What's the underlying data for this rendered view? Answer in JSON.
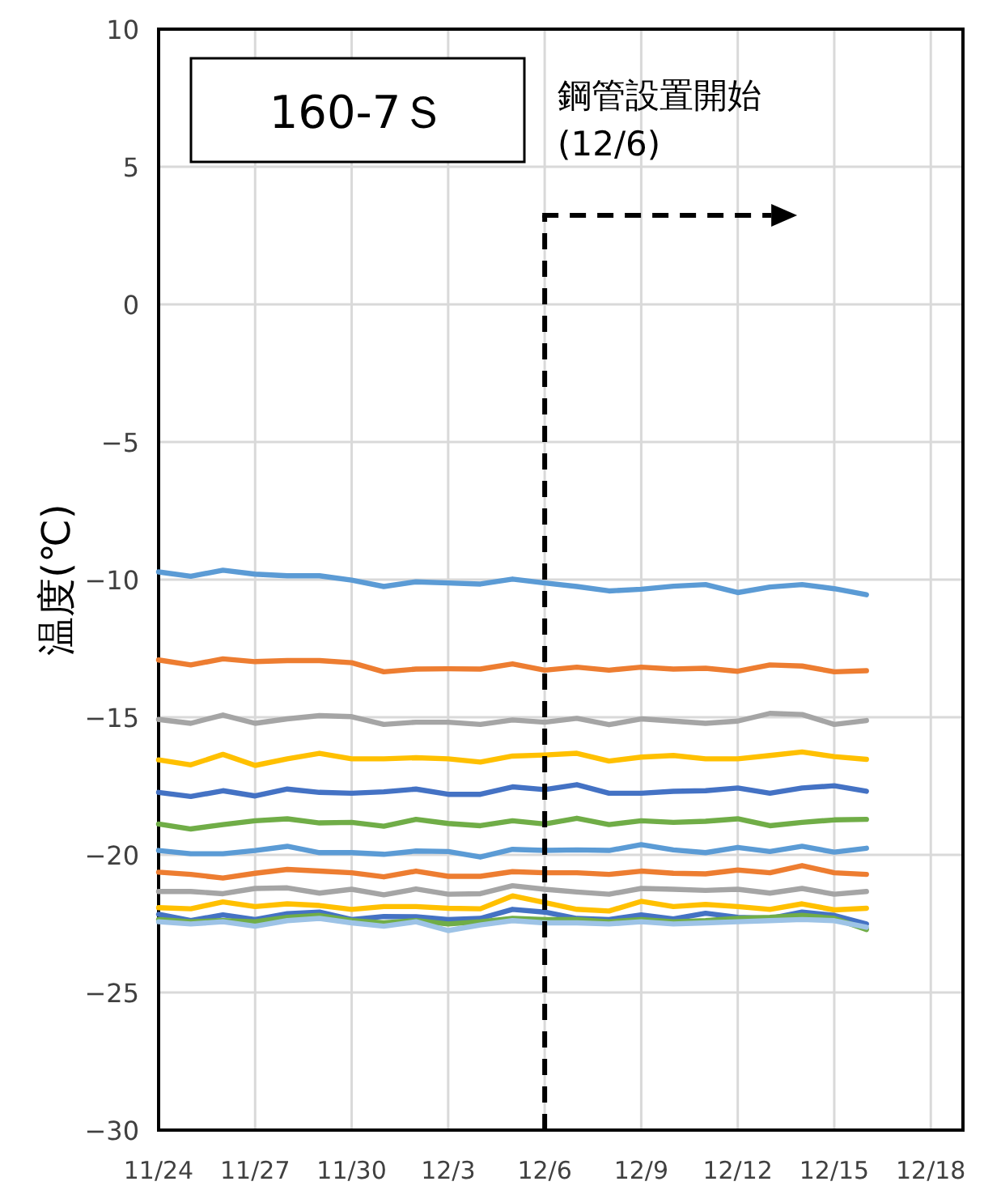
{
  "chart_data": {
    "type": "line",
    "ylabel": "温度(℃)",
    "annotations": [
      "160-7Ｓ"
    ],
    "x": [
      "--11-24",
      "--11-25",
      "--11-26",
      "--11-27",
      "--11-28",
      "--11-29",
      "--11-30",
      "--12-01",
      "--12-02",
      "--12-03",
      "--12-04",
      "--12-05",
      "--12-06",
      "--12-07",
      "--12-08",
      "--12-09",
      "--12-10",
      "--12-11",
      "--12-12",
      "--12-13",
      "--12-14",
      "--12-15",
      "--12-16"
    ],
    "xlim": [
      "--11-24",
      "--12-19"
    ],
    "xticks": [
      {
        "value": "--11-24",
        "label": "11/24"
      },
      {
        "value": "--11-27",
        "label": "11/27"
      },
      {
        "value": "--11-30",
        "label": "11/30"
      },
      {
        "value": "--12-03",
        "label": "12/3"
      },
      {
        "value": "--12-06",
        "label": "12/6"
      },
      {
        "value": "--12-09",
        "label": "12/9"
      },
      {
        "value": "--12-12",
        "label": "12/12"
      },
      {
        "value": "--12-15",
        "label": "12/15"
      },
      {
        "value": "--12-18",
        "label": "12/18"
      }
    ],
    "ylim": [
      -30,
      10
    ],
    "yticks": [
      -30,
      -25,
      -20,
      -15,
      -10,
      -5,
      0,
      5,
      10
    ],
    "grid": true,
    "marker": "none",
    "line_style": "solid",
    "ref_lines": [
      {
        "axis": "x",
        "value": "--12-06",
        "label": "鋼管設置開始\n(12/6)",
        "line_style": "dashed",
        "color": "#000000"
      }
    ],
    "series": [
      {
        "color": "#5b9bd5",
        "values": [
          -9.72,
          -9.88,
          -9.66,
          -9.8,
          -9.86,
          -9.86,
          -10.02,
          -10.25,
          -10.08,
          -10.12,
          -10.16,
          -9.98,
          -10.12,
          -10.25,
          -10.41,
          -10.35,
          -10.24,
          -10.18,
          -10.47,
          -10.27,
          -10.18,
          -10.33,
          -10.55
        ]
      },
      {
        "color": "#ed7d31",
        "values": [
          -12.92,
          -13.1,
          -12.88,
          -12.98,
          -12.94,
          -12.94,
          -13.02,
          -13.35,
          -13.25,
          -13.24,
          -13.25,
          -13.06,
          -13.29,
          -13.18,
          -13.29,
          -13.18,
          -13.25,
          -13.22,
          -13.33,
          -13.1,
          -13.14,
          -13.35,
          -13.31
        ]
      },
      {
        "color": "#a5a5a5",
        "values": [
          -15.08,
          -15.22,
          -14.92,
          -15.22,
          -15.06,
          -14.94,
          -14.98,
          -15.26,
          -15.18,
          -15.18,
          -15.26,
          -15.1,
          -15.18,
          -15.04,
          -15.27,
          -15.06,
          -15.14,
          -15.22,
          -15.14,
          -14.86,
          -14.9,
          -15.26,
          -15.12
        ]
      },
      {
        "color": "#ffc000",
        "values": [
          -16.55,
          -16.73,
          -16.35,
          -16.75,
          -16.51,
          -16.31,
          -16.51,
          -16.51,
          -16.47,
          -16.51,
          -16.63,
          -16.41,
          -16.37,
          -16.31,
          -16.59,
          -16.45,
          -16.39,
          -16.51,
          -16.51,
          -16.39,
          -16.26,
          -16.43,
          -16.53
        ]
      },
      {
        "color": "#4472c4",
        "values": [
          -17.73,
          -17.88,
          -17.67,
          -17.86,
          -17.61,
          -17.73,
          -17.76,
          -17.71,
          -17.61,
          -17.8,
          -17.8,
          -17.53,
          -17.63,
          -17.45,
          -17.76,
          -17.76,
          -17.69,
          -17.67,
          -17.57,
          -17.76,
          -17.57,
          -17.49,
          -17.69
        ]
      },
      {
        "color": "#70ad47",
        "values": [
          -18.88,
          -19.06,
          -18.9,
          -18.76,
          -18.69,
          -18.84,
          -18.82,
          -18.96,
          -18.71,
          -18.86,
          -18.94,
          -18.76,
          -18.88,
          -18.67,
          -18.9,
          -18.76,
          -18.82,
          -18.78,
          -18.69,
          -18.94,
          -18.82,
          -18.73,
          -18.71
        ]
      },
      {
        "color": "#5b9bd5",
        "values": [
          -19.84,
          -19.96,
          -19.96,
          -19.84,
          -19.69,
          -19.92,
          -19.92,
          -19.98,
          -19.86,
          -19.88,
          -20.08,
          -19.8,
          -19.84,
          -19.82,
          -19.84,
          -19.63,
          -19.82,
          -19.92,
          -19.73,
          -19.88,
          -19.69,
          -19.9,
          -19.76
        ]
      },
      {
        "color": "#ed7d31",
        "values": [
          -20.63,
          -20.71,
          -20.84,
          -20.67,
          -20.53,
          -20.59,
          -20.65,
          -20.8,
          -20.59,
          -20.78,
          -20.78,
          -20.61,
          -20.65,
          -20.65,
          -20.71,
          -20.59,
          -20.67,
          -20.69,
          -20.55,
          -20.65,
          -20.39,
          -20.65,
          -20.71
        ]
      },
      {
        "color": "#a5a5a5",
        "values": [
          -21.33,
          -21.33,
          -21.41,
          -21.22,
          -21.2,
          -21.39,
          -21.25,
          -21.45,
          -21.24,
          -21.43,
          -21.41,
          -21.12,
          -21.25,
          -21.35,
          -21.43,
          -21.22,
          -21.25,
          -21.29,
          -21.25,
          -21.39,
          -21.22,
          -21.43,
          -21.33
        ]
      },
      {
        "color": "#ffc000",
        "values": [
          -21.92,
          -21.96,
          -21.71,
          -21.88,
          -21.78,
          -21.84,
          -21.98,
          -21.88,
          -21.88,
          -21.94,
          -21.96,
          -21.49,
          -21.73,
          -21.98,
          -22.04,
          -21.69,
          -21.88,
          -21.8,
          -21.88,
          -21.98,
          -21.78,
          -22.0,
          -21.94
        ]
      },
      {
        "color": "#4472c4",
        "values": [
          -22.16,
          -22.39,
          -22.18,
          -22.35,
          -22.14,
          -22.08,
          -22.35,
          -22.24,
          -22.25,
          -22.35,
          -22.31,
          -21.98,
          -22.08,
          -22.31,
          -22.35,
          -22.18,
          -22.33,
          -22.12,
          -22.27,
          -22.31,
          -22.08,
          -22.2,
          -22.51
        ]
      },
      {
        "color": "#70ad47",
        "values": [
          -22.35,
          -22.43,
          -22.39,
          -22.43,
          -22.27,
          -22.2,
          -22.39,
          -22.47,
          -22.39,
          -22.51,
          -22.43,
          -22.31,
          -22.35,
          -22.35,
          -22.43,
          -22.35,
          -22.43,
          -22.39,
          -22.31,
          -22.27,
          -22.2,
          -22.31,
          -22.71
        ]
      },
      {
        "color": "#9dc3e6",
        "values": [
          -22.43,
          -22.51,
          -22.43,
          -22.59,
          -22.39,
          -22.31,
          -22.47,
          -22.59,
          -22.43,
          -22.75,
          -22.55,
          -22.39,
          -22.47,
          -22.47,
          -22.51,
          -22.43,
          -22.51,
          -22.47,
          -22.43,
          -22.39,
          -22.35,
          -22.39,
          -22.63
        ]
      }
    ]
  }
}
